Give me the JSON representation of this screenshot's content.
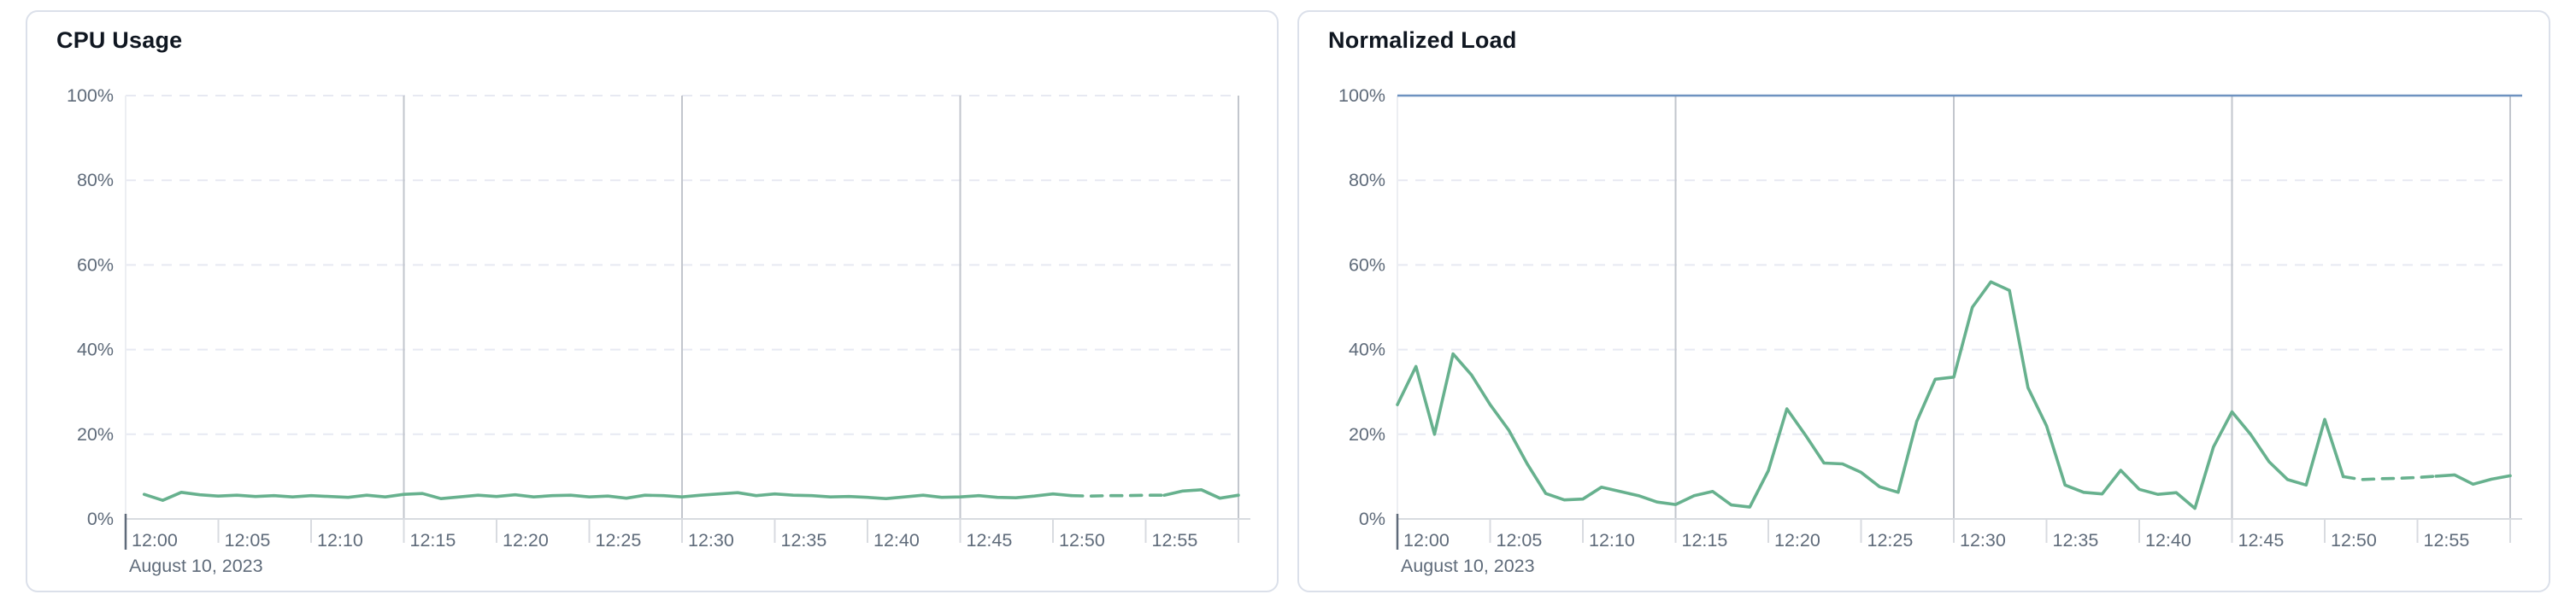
{
  "colors": {
    "series_green": "#67b18e",
    "reference_blue": "#6e92c0",
    "grid_dashed": "#e7e9f2",
    "grid_vertical": "#c2c6cd",
    "axis_line": "#d8dbe0",
    "plot_left_edge": "#eceef2",
    "tick_mark": "#d8dbe0",
    "origin_tick_mark": "#5f6b7a",
    "label_text": "#5f6b7a",
    "title_text": "#101721",
    "card_border": "#dbe0ea",
    "card_background": "#ffffff"
  },
  "chart_data": [
    {
      "type": "line",
      "title": "CPU Usage",
      "date_label": "August 10, 2023",
      "x_start": "12:00",
      "x_end": "13:00",
      "x_interval_minutes": 1,
      "x_tick_labels": [
        "12:00",
        "12:05",
        "12:10",
        "12:15",
        "12:20",
        "12:25",
        "12:30",
        "12:35",
        "12:40",
        "12:45",
        "12:50",
        "12:55"
      ],
      "v_gridline_minutes": [
        15,
        30,
        45,
        60
      ],
      "y_tick_labels": [
        "100%",
        "80%",
        "60%",
        "40%",
        "20%",
        "0%"
      ],
      "ylim": [
        0,
        100
      ],
      "grid": true,
      "legend": false,
      "series": [
        {
          "name": "CPU Usage",
          "unit": "%",
          "color": "#67b18e",
          "values": [
            5.8,
            5.8,
            4.4,
            6.3,
            5.7,
            5.4,
            5.6,
            5.3,
            5.5,
            5.2,
            5.5,
            5.3,
            5.1,
            5.6,
            5.2,
            5.8,
            6.0,
            4.8,
            5.2,
            5.6,
            5.3,
            5.7,
            5.2,
            5.5,
            5.6,
            5.2,
            5.4,
            4.9,
            5.6,
            5.5,
            5.2,
            5.6,
            5.9,
            6.2,
            5.5,
            5.9,
            5.6,
            5.5,
            5.2,
            5.3,
            5.1,
            4.8,
            5.2,
            5.6,
            5.1,
            5.2,
            5.5,
            5.1,
            5.0,
            5.4,
            5.9,
            5.5,
            5.4,
            5.5,
            5.5,
            5.6,
            5.6,
            6.6,
            6.9,
            4.9,
            5.6
          ],
          "segments": [
            {
              "from": 1,
              "to": 51,
              "style": "solid"
            },
            {
              "from": 51,
              "to": 56,
              "style": "dashed"
            },
            {
              "from": 56,
              "to": 60,
              "style": "solid"
            }
          ]
        }
      ]
    },
    {
      "type": "line",
      "title": "Normalized Load",
      "date_label": "August 10, 2023",
      "x_start": "12:00",
      "x_end": "13:00",
      "x_interval_minutes": 1,
      "x_tick_labels": [
        "12:00",
        "12:05",
        "12:10",
        "12:15",
        "12:20",
        "12:25",
        "12:30",
        "12:35",
        "12:40",
        "12:45",
        "12:50",
        "12:55"
      ],
      "v_gridline_minutes": [
        15,
        30,
        45,
        60
      ],
      "y_tick_labels": [
        "100%",
        "80%",
        "60%",
        "40%",
        "20%",
        "0%"
      ],
      "ylim": [
        0,
        100
      ],
      "grid": true,
      "legend": false,
      "reference_line": {
        "name": "100% ceiling",
        "value": 100,
        "color": "#6e92c0"
      },
      "series": [
        {
          "name": "Normalized Load",
          "unit": "%",
          "color": "#67b18e",
          "values": [
            27,
            36,
            20,
            39,
            34,
            27,
            21,
            13,
            6,
            4.5,
            4.7,
            7.5,
            6.5,
            5.5,
            4.0,
            3.4,
            5.5,
            6.5,
            3.3,
            2.8,
            11.4,
            26,
            19.8,
            13.2,
            13.0,
            11,
            7.6,
            6.3,
            23,
            33,
            33.5,
            50,
            56,
            54,
            31,
            22,
            8,
            6.3,
            5.9,
            11.5,
            7.0,
            5.8,
            6.2,
            2.5,
            17,
            25.3,
            20,
            13.5,
            9.3,
            8.0,
            23.5,
            10,
            9.3,
            9.5,
            9.6,
            9.8,
            10.1,
            10.4,
            8.2,
            9.4,
            10.2
          ],
          "segments": [
            {
              "from": 0,
              "to": 51,
              "style": "solid"
            },
            {
              "from": 51,
              "to": 56,
              "style": "dashed"
            },
            {
              "from": 56,
              "to": 60,
              "style": "solid"
            }
          ]
        }
      ]
    }
  ]
}
